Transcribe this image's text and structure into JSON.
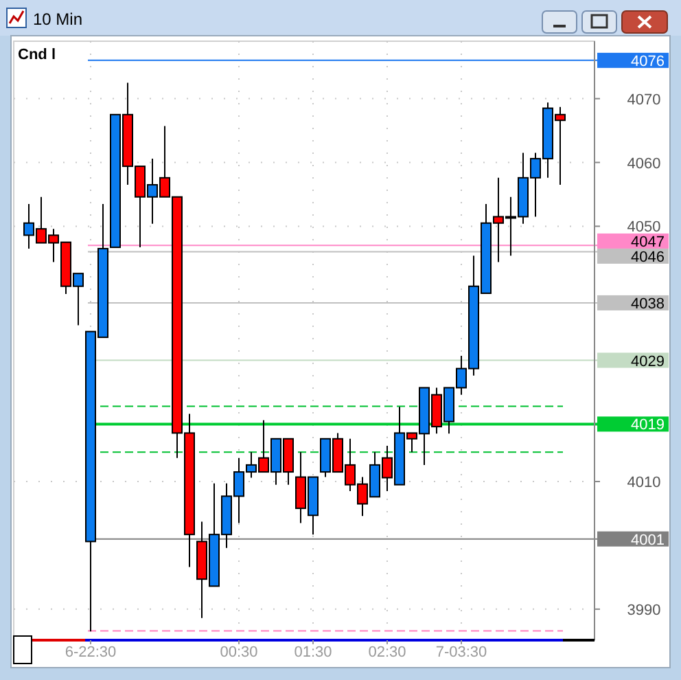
{
  "chart_data": {
    "type": "candlestick",
    "title": "10 Min",
    "annotations": [
      "Cnd l"
    ],
    "categories": [
      null,
      null,
      null,
      null,
      null,
      "6-22:30",
      null,
      null,
      null,
      null,
      null,
      null,
      null,
      null,
      null,
      null,
      null,
      "00:30",
      null,
      null,
      null,
      null,
      null,
      "01:30",
      null,
      null,
      null,
      null,
      null,
      "02:30",
      null,
      null,
      null,
      null,
      null,
      "7-03:30",
      null,
      null,
      null,
      null,
      null,
      null,
      null,
      null
    ],
    "ohlc": [
      [
        4048.6,
        4053.5,
        4046.5,
        4050.5
      ],
      [
        4049.6,
        4054.6,
        4047.4,
        4047.4
      ],
      [
        4048.6,
        4049.6,
        4044.4,
        4047.4
      ],
      [
        4047.5,
        4047.5,
        4039.4,
        4040.6
      ],
      [
        4040.6,
        4042.6,
        4034.5,
        4042.6
      ],
      [
        4000.6,
        4033.5,
        3986.5,
        4033.5
      ],
      [
        4032.6,
        4053.5,
        4032.6,
        4046.5
      ],
      [
        4046.7,
        4067.5,
        4046.7,
        4067.5
      ],
      [
        4067.5,
        4072.5,
        4056.5,
        4059.4
      ],
      [
        4059.4,
        4059.4,
        4046.7,
        4054.6
      ],
      [
        4054.6,
        4060.6,
        4050.4,
        4056.5
      ],
      [
        4057.6,
        4065.7,
        4054.6,
        4054.6
      ],
      [
        4054.6,
        4054.6,
        4013.7,
        4017.6
      ],
      [
        4017.6,
        4020.6,
        3996.6,
        4001.7
      ],
      [
        4000.6,
        4003.7,
        3988.6,
        3994.7
      ],
      [
        3993.6,
        4009.7,
        3993.6,
        4001.7
      ],
      [
        4001.7,
        4009.7,
        3999.6,
        4007.7
      ],
      [
        4007.7,
        4013.7,
        4003.5,
        4011.5
      ],
      [
        4011.5,
        4014.6,
        4010.6,
        4012.6
      ],
      [
        4013.7,
        4019.6,
        4011.5,
        4011.5
      ],
      [
        4011.5,
        4016.7,
        4009.5,
        4016.7
      ],
      [
        4016.7,
        4016.7,
        4009.5,
        4011.5
      ],
      [
        4010.7,
        4014.6,
        4003.5,
        4005.8
      ],
      [
        4004.7,
        4010.7,
        4001.7,
        4010.7
      ],
      [
        4011.5,
        4016.7,
        4010.7,
        4016.7
      ],
      [
        4016.7,
        4017.6,
        4011.5,
        4011.5
      ],
      [
        4012.6,
        4016.7,
        4008.5,
        4009.5
      ],
      [
        4009.6,
        4010.7,
        4004.6,
        4006.5
      ],
      [
        4007.6,
        4014.6,
        4007.6,
        4012.6
      ],
      [
        4013.7,
        4015.6,
        4008.5,
        4010.6
      ],
      [
        4009.5,
        4021.7,
        4009.5,
        4017.6
      ],
      [
        4017.6,
        4017.6,
        4014.6,
        4016.7
      ],
      [
        4017.5,
        4024.7,
        4012.6,
        4024.7
      ],
      [
        4023.6,
        4024.7,
        4017.5,
        4018.6
      ],
      [
        4019.4,
        4024.7,
        4017.5,
        4024.7
      ],
      [
        4024.7,
        4029.7,
        4023.6,
        4027.7
      ],
      [
        4027.7,
        4045.4,
        4026.6,
        4040.6
      ],
      [
        4039.5,
        4053.5,
        4039.5,
        4050.5
      ],
      [
        4051.5,
        4057.6,
        4044.4,
        4050.5
      ],
      [
        4051.5,
        4054.6,
        4045.4,
        4051.5
      ],
      [
        4051.5,
        4061.5,
        4050.4,
        4057.6
      ],
      [
        4057.6,
        4061.5,
        4051.5,
        4060.6
      ],
      [
        4060.6,
        4069.4,
        4057.6,
        4068.5
      ],
      [
        4067.5,
        4068.7,
        4056.5,
        4066.6
      ]
    ],
    "colors": [
      "#0a7cf0",
      "#ff0000",
      "#ff0000",
      "#ff0000",
      "#0a7cf0",
      "#0a7cf0",
      "#0a7cf0",
      "#0a7cf0",
      "#ff0000",
      "#ff0000",
      "#0a7cf0",
      "#ff0000",
      "#ff0000",
      "#ff0000",
      "#ff0000",
      "#0a7cf0",
      "#0a7cf0",
      "#0a7cf0",
      "#0a7cf0",
      "#ff0000",
      "#0a7cf0",
      "#ff0000",
      "#ff0000",
      "#0a7cf0",
      "#0a7cf0",
      "#ff0000",
      "#ff0000",
      "#ff0000",
      "#0a7cf0",
      "#ff0000",
      "#0a7cf0",
      "#ff0000",
      "#0a7cf0",
      "#ff0000",
      "#0a7cf0",
      "#0a7cf0",
      "#0a7cf0",
      "#0a7cf0",
      "#ff0000",
      "#000000",
      "#0a7cf0",
      "#0a7cf0",
      "#0a7cf0",
      "#ff0000"
    ],
    "ylim": [
      3986,
      4079
    ],
    "yticks": [
      3990,
      4010,
      4050,
      4060,
      4070
    ],
    "grid": true,
    "ref_lines": [
      {
        "axis": "y",
        "value": 4076,
        "label": "4076",
        "color": "#1e78f0"
      },
      {
        "axis": "y",
        "value": 4047,
        "label": "4047",
        "color": "#ff88c8"
      },
      {
        "axis": "y",
        "value": 4046,
        "label": "4046",
        "color": "#c0c0c0"
      },
      {
        "axis": "y",
        "value": 4038,
        "label": "4038",
        "color": "#c0c0c0"
      },
      {
        "axis": "y",
        "value": 4029,
        "label": "4029",
        "color": "#c4dcc4"
      },
      {
        "axis": "y",
        "value": 4021.8,
        "label": null,
        "color": "#00c030",
        "line_style": "dashed"
      },
      {
        "axis": "y",
        "value": 4019,
        "label": "4019",
        "color": "#00cc33"
      },
      {
        "axis": "y",
        "value": 4014.6,
        "label": null,
        "color": "#00c030",
        "line_style": "dashed"
      },
      {
        "axis": "y",
        "value": 4001,
        "label": "4001",
        "color": "#808080"
      },
      {
        "axis": "y",
        "value": 3986.6,
        "label": null,
        "color": "#ff80c0",
        "line_style": "dashed"
      }
    ]
  }
}
